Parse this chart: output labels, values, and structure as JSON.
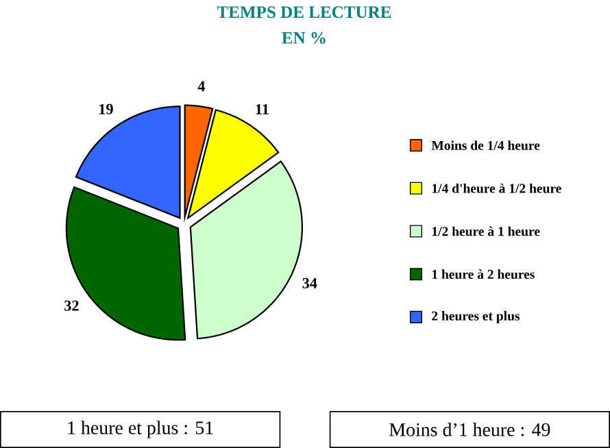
{
  "chart_data": {
    "type": "pie",
    "title": "TEMPS DE LECTURE",
    "subtitle": "EN %",
    "categories": [
      "Moins de 1/4 heure",
      "1/4 d'heure à 1/2 heure",
      "1/2 heure à 1 heure",
      "1 heure à 2 heures",
      "2 heures et plus"
    ],
    "values": [
      4,
      11,
      34,
      32,
      19
    ],
    "colors": [
      "#ff6600",
      "#ffff00",
      "#ccffcc",
      "#006600",
      "#3366ff"
    ],
    "data_labels": true,
    "legend": "right",
    "annotations": [
      "1 heure et plus : 51",
      "Moins d’1 heure : 49"
    ]
  }
}
